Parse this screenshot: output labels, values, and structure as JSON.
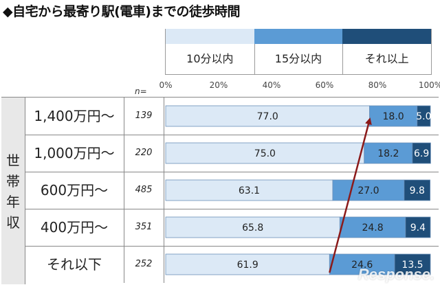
{
  "title": "◆自宅から最寄り駅(電車)までの徒歩時間",
  "legend": [
    {
      "label": "10分以内",
      "color": "#dce9f6"
    },
    {
      "label": "15分以内",
      "color": "#5b9bd5"
    },
    {
      "label": "それ以上",
      "color": "#1f4e79"
    }
  ],
  "n_header": "n=",
  "side_label": [
    "世",
    "帯",
    "年",
    "収"
  ],
  "pct_ticks": [
    "0%",
    "20%",
    "40%",
    "60%",
    "80%",
    "100%"
  ],
  "chart_data": {
    "type": "bar",
    "stacked": true,
    "orientation": "horizontal",
    "categories": [
      "1,400万円～",
      "1,000万円～",
      "600万円～",
      "400万円～",
      "それ以下"
    ],
    "n": [
      "139",
      "220",
      "485",
      "351",
      "252"
    ],
    "series": [
      {
        "name": "10分以内",
        "values": [
          77.0,
          75.0,
          63.1,
          65.8,
          61.9
        ]
      },
      {
        "name": "15分以内",
        "values": [
          18.0,
          18.2,
          27.0,
          24.8,
          24.6
        ]
      },
      {
        "name": "それ以上",
        "values": [
          5.0,
          6.9,
          9.8,
          9.4,
          13.5
        ]
      }
    ],
    "xlim": [
      0,
      100
    ],
    "grid": false
  },
  "watermark": "Response."
}
